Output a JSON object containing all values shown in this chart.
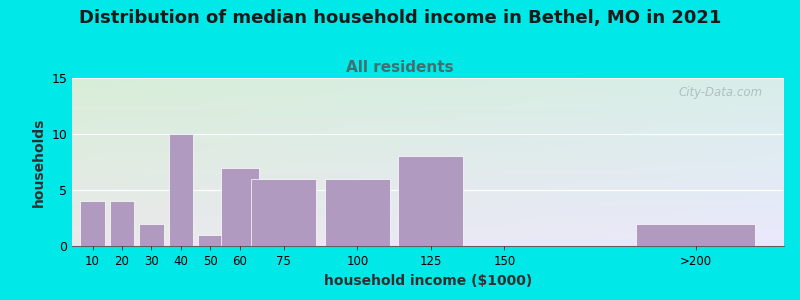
{
  "title": "Distribution of median household income in Bethel, MO in 2021",
  "subtitle": "All residents",
  "xlabel": "household income ($1000)",
  "ylabel": "households",
  "categories": [
    "10",
    "20",
    "30",
    "40",
    "50",
    "60",
    "75",
    "100",
    "125",
    "150",
    ">200"
  ],
  "values": [
    4,
    4,
    2,
    10,
    1,
    7,
    6,
    6,
    8,
    0,
    2
  ],
  "bar_color": "#b09ac0",
  "bar_edge_color": "#ffffff",
  "ylim": [
    0,
    15
  ],
  "yticks": [
    0,
    5,
    10,
    15
  ],
  "background_outer": "#00e8e8",
  "title_fontsize": 13,
  "subtitle_fontsize": 11,
  "subtitle_color": "#407070",
  "title_color": "#1a1a1a",
  "axis_label_fontsize": 10,
  "watermark_text": "City-Data.com",
  "watermark_color": "#a8b8b8",
  "positions": [
    10,
    20,
    30,
    40,
    50,
    60,
    75,
    100,
    125,
    150,
    215
  ],
  "widths": [
    9,
    9,
    9,
    9,
    9,
    14,
    24,
    24,
    24,
    24,
    44
  ],
  "xlim_left": 3,
  "xlim_right": 245
}
